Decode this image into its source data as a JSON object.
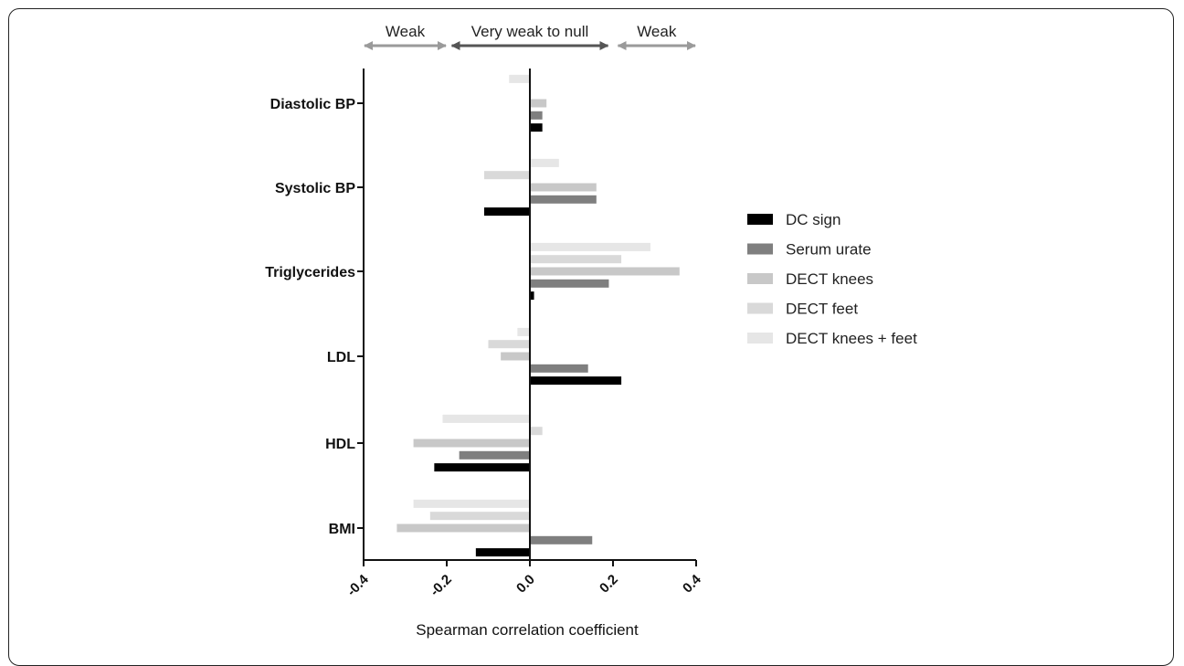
{
  "chart_data": {
    "type": "bar",
    "orientation": "horizontal",
    "title": "",
    "xlabel": "Spearman correlation coefficient",
    "ylabel": "",
    "xlim": [
      -0.4,
      0.4
    ],
    "x_ticks": [
      "-0.4",
      "-0.2",
      "0.0",
      "0.2",
      "0.4"
    ],
    "grid": false,
    "legend_position": "right",
    "categories": [
      "Diastolic BP",
      "Systolic BP",
      "Triglycerides",
      "LDL",
      "HDL",
      "BMI"
    ],
    "series": [
      {
        "name": "DC sign",
        "color": "#000000",
        "values": [
          0.03,
          -0.11,
          0.01,
          0.22,
          -0.23,
          -0.13
        ]
      },
      {
        "name": "Serum urate",
        "color": "#7f7f7f",
        "values": [
          0.03,
          0.16,
          0.19,
          0.14,
          -0.17,
          0.15
        ]
      },
      {
        "name": "DECT knees",
        "color": "#c8c8c8",
        "values": [
          0.04,
          0.16,
          0.36,
          -0.07,
          -0.28,
          -0.32
        ]
      },
      {
        "name": "DECT feet",
        "color": "#d9d9d9",
        "values": [
          0.0,
          -0.11,
          0.22,
          -0.1,
          0.03,
          -0.24
        ]
      },
      {
        "name": "DECT knees + feet",
        "color": "#e6e6e6",
        "values": [
          -0.05,
          0.07,
          0.29,
          -0.03,
          -0.21,
          -0.28
        ]
      }
    ],
    "strength_bands": [
      {
        "label": "Weak",
        "from": -0.4,
        "to": -0.2,
        "color": "#9a9a9a"
      },
      {
        "label": "Very weak to null",
        "from": -0.19,
        "to": 0.19,
        "color": "#555555"
      },
      {
        "label": "Weak",
        "from": 0.21,
        "to": 0.4,
        "color": "#9a9a9a"
      }
    ]
  }
}
